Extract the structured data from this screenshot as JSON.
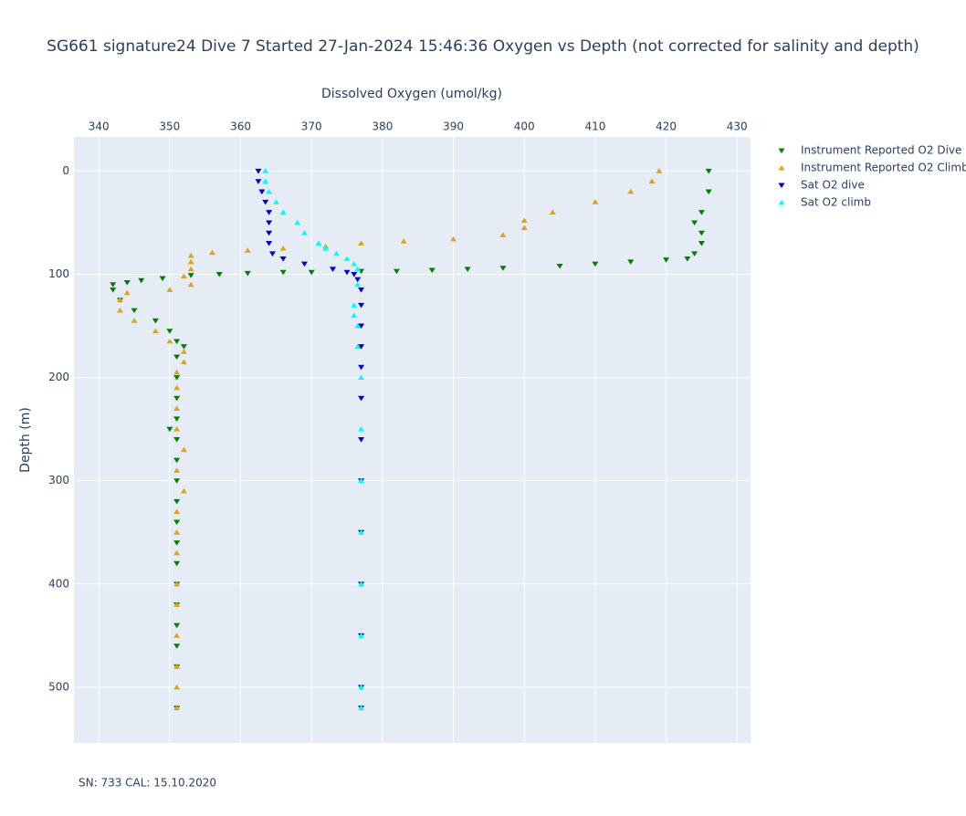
{
  "chart_data": {
    "type": "scatter",
    "title": "SG661 signature24 Dive 7 Started 27-Jan-2024 15:46:36  Oxygen vs Depth (not corrected for salinity and depth)",
    "x_label": "Dissolved Oxygen (umol/kg)",
    "y_label": "Depth (m)",
    "footnote": "SN: 733  CAL: 15.10.2020",
    "xlim": [
      336.5,
      431.9
    ],
    "xticks": [
      340,
      350,
      360,
      370,
      380,
      390,
      400,
      410,
      420,
      430
    ],
    "ylim": [
      -33,
      554
    ],
    "yticks": [
      0,
      100,
      200,
      300,
      400,
      500
    ],
    "y_reversed": true,
    "x_axis_side": "top",
    "grid": true,
    "legend": "right",
    "series": [
      {
        "name": "Instrument Reported O2 Dive",
        "color": "#008000",
        "marker": "triangle-down",
        "x": [
          426,
          426,
          425,
          424,
          425,
          425,
          424,
          423,
          420,
          415,
          410,
          405,
          397,
          392,
          387,
          382,
          377,
          370,
          366,
          361,
          357,
          353,
          349,
          346,
          344,
          342,
          342,
          343,
          345,
          348,
          350,
          351,
          352,
          351,
          351,
          351,
          351,
          350,
          351,
          351,
          351,
          351,
          351,
          351,
          351,
          351,
          351,
          351,
          351,
          351,
          351
        ],
        "y": [
          0,
          20,
          40,
          50,
          60,
          70,
          80,
          85,
          86,
          88,
          90,
          92,
          94,
          95,
          96,
          97,
          97,
          98,
          98,
          99,
          100,
          101,
          104,
          106,
          108,
          110,
          115,
          125,
          135,
          145,
          155,
          165,
          170,
          180,
          200,
          220,
          240,
          250,
          260,
          280,
          300,
          320,
          340,
          360,
          380,
          400,
          420,
          440,
          460,
          480,
          520
        ]
      },
      {
        "name": "Instrument Reported O2 Climb",
        "color": "#daa520",
        "marker": "triangle-up",
        "x": [
          419,
          418,
          415,
          410,
          404,
          400,
          400,
          397,
          390,
          383,
          377,
          372,
          366,
          361,
          356,
          353,
          353,
          353,
          352,
          353,
          350,
          344,
          343,
          343,
          345,
          348,
          350,
          352,
          352,
          351,
          351,
          351,
          351,
          352,
          351,
          352,
          351,
          351,
          351,
          351,
          351,
          351,
          351,
          351,
          351
        ],
        "y": [
          0,
          10,
          20,
          30,
          40,
          48,
          55,
          62,
          66,
          68,
          70,
          73,
          75,
          77,
          79,
          82,
          88,
          95,
          102,
          110,
          115,
          118,
          125,
          135,
          145,
          155,
          165,
          175,
          185,
          195,
          210,
          230,
          250,
          270,
          290,
          310,
          330,
          350,
          370,
          400,
          420,
          450,
          480,
          500,
          520
        ]
      },
      {
        "name": "Sat O2 dive",
        "color": "#0000cd",
        "marker": "triangle-down",
        "x": [
          362.5,
          362.5,
          363,
          363.5,
          364,
          364,
          364,
          364,
          364.5,
          366,
          369,
          373,
          375,
          376,
          376.5,
          377,
          377,
          377,
          377,
          377,
          377,
          377,
          377,
          377,
          377,
          377,
          377,
          377
        ],
        "y": [
          0,
          10,
          20,
          30,
          40,
          50,
          60,
          70,
          80,
          85,
          90,
          95,
          98,
          100,
          105,
          115,
          130,
          150,
          170,
          190,
          220,
          260,
          300,
          350,
          400,
          450,
          500,
          520
        ]
      },
      {
        "name": "Sat O2 climb",
        "color": "#00ffff",
        "marker": "triangle-up",
        "x": [
          363.5,
          363.5,
          364,
          365,
          366,
          368,
          369,
          371,
          372,
          373.5,
          375,
          376,
          376.5,
          376.5,
          376,
          376,
          376.5,
          376.5,
          377,
          377,
          377,
          377,
          377,
          377,
          377,
          377
        ],
        "y": [
          0,
          10,
          20,
          30,
          40,
          50,
          60,
          70,
          75,
          80,
          85,
          90,
          95,
          110,
          130,
          140,
          150,
          170,
          200,
          250,
          300,
          350,
          400,
          450,
          500,
          520
        ]
      }
    ]
  }
}
